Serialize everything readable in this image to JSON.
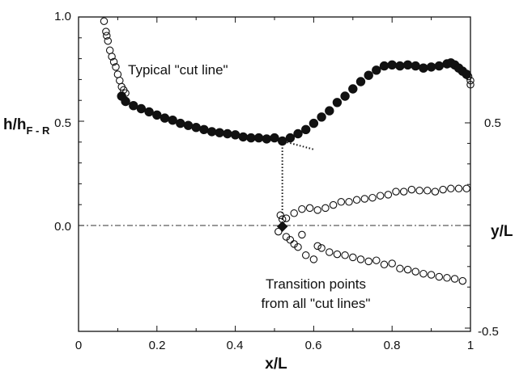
{
  "chart_data": {
    "type": "scatter",
    "title": "",
    "xlabel": "x/L",
    "ylabel_left": {
      "main": "h/h",
      "sub": "F - R"
    },
    "ylabel_right": "y/L",
    "xlim": [
      0,
      1
    ],
    "ylim_left": [
      0,
      1
    ],
    "ylim_right": [
      -0.5,
      0.5
    ],
    "x_ticks": [
      "0",
      "0.2",
      "0.4",
      "0.6",
      "0.8",
      "1"
    ],
    "y_ticks_left": [
      "0.0",
      "0.5",
      "1.0"
    ],
    "y_ticks_right": [
      "-0.5",
      "0.5"
    ],
    "grid": false,
    "annotations": [
      {
        "text": "Typical \"cut line\""
      },
      {
        "text": "Transition points"
      },
      {
        "text": "from all \"cut lines\""
      }
    ],
    "series": [
      {
        "role": "typical cut line (filled)",
        "axis": "left",
        "points": [
          [
            0.11,
            0.62
          ],
          [
            0.12,
            0.595
          ],
          [
            0.14,
            0.575
          ],
          [
            0.16,
            0.56
          ],
          [
            0.18,
            0.545
          ],
          [
            0.2,
            0.53
          ],
          [
            0.22,
            0.515
          ],
          [
            0.24,
            0.505
          ],
          [
            0.26,
            0.49
          ],
          [
            0.28,
            0.48
          ],
          [
            0.3,
            0.47
          ],
          [
            0.32,
            0.46
          ],
          [
            0.34,
            0.45
          ],
          [
            0.36,
            0.445
          ],
          [
            0.38,
            0.44
          ],
          [
            0.4,
            0.435
          ],
          [
            0.42,
            0.425
          ],
          [
            0.44,
            0.42
          ],
          [
            0.46,
            0.42
          ],
          [
            0.48,
            0.415
          ],
          [
            0.5,
            0.42
          ],
          [
            0.52,
            0.405
          ],
          [
            0.54,
            0.42
          ],
          [
            0.56,
            0.44
          ],
          [
            0.58,
            0.46
          ],
          [
            0.6,
            0.49
          ],
          [
            0.62,
            0.52
          ],
          [
            0.64,
            0.55
          ],
          [
            0.66,
            0.59
          ],
          [
            0.68,
            0.62
          ],
          [
            0.7,
            0.655
          ],
          [
            0.72,
            0.69
          ],
          [
            0.74,
            0.72
          ],
          [
            0.76,
            0.745
          ],
          [
            0.78,
            0.765
          ],
          [
            0.8,
            0.77
          ],
          [
            0.82,
            0.765
          ],
          [
            0.84,
            0.77
          ],
          [
            0.86,
            0.765
          ],
          [
            0.88,
            0.755
          ],
          [
            0.9,
            0.76
          ],
          [
            0.92,
            0.765
          ],
          [
            0.94,
            0.775
          ],
          [
            0.95,
            0.78
          ],
          [
            0.96,
            0.77
          ],
          [
            0.97,
            0.755
          ],
          [
            0.98,
            0.74
          ],
          [
            0.99,
            0.725
          ]
        ]
      },
      {
        "role": "typical cut line (open, ends)",
        "axis": "left",
        "points": [
          [
            0.065,
            0.98
          ],
          [
            0.07,
            0.93
          ],
          [
            0.072,
            0.91
          ],
          [
            0.075,
            0.885
          ],
          [
            0.08,
            0.84
          ],
          [
            0.085,
            0.81
          ],
          [
            0.09,
            0.785
          ],
          [
            0.095,
            0.76
          ],
          [
            0.1,
            0.725
          ],
          [
            0.105,
            0.695
          ],
          [
            0.11,
            0.665
          ],
          [
            0.115,
            0.65
          ],
          [
            0.12,
            0.635
          ],
          [
            0.995,
            0.715
          ],
          [
            1.0,
            0.695
          ],
          [
            1.0,
            0.675
          ]
        ]
      },
      {
        "role": "transition points upper branch",
        "axis": "right",
        "points": [
          [
            0.515,
            0.05
          ],
          [
            0.52,
            0.03
          ],
          [
            0.53,
            0.035
          ],
          [
            0.55,
            0.06
          ],
          [
            0.57,
            0.08
          ],
          [
            0.59,
            0.085
          ],
          [
            0.61,
            0.075
          ],
          [
            0.63,
            0.085
          ],
          [
            0.65,
            0.1
          ],
          [
            0.67,
            0.115
          ],
          [
            0.69,
            0.115
          ],
          [
            0.71,
            0.125
          ],
          [
            0.73,
            0.13
          ],
          [
            0.75,
            0.135
          ],
          [
            0.77,
            0.145
          ],
          [
            0.79,
            0.15
          ],
          [
            0.81,
            0.165
          ],
          [
            0.83,
            0.165
          ],
          [
            0.85,
            0.175
          ],
          [
            0.87,
            0.17
          ],
          [
            0.89,
            0.17
          ],
          [
            0.91,
            0.165
          ],
          [
            0.93,
            0.175
          ],
          [
            0.95,
            0.18
          ],
          [
            0.97,
            0.18
          ],
          [
            0.99,
            0.18
          ]
        ]
      },
      {
        "role": "transition points lower branch",
        "axis": "right",
        "points": [
          [
            0.51,
            -0.03
          ],
          [
            0.53,
            -0.055
          ],
          [
            0.54,
            -0.07
          ],
          [
            0.55,
            -0.09
          ],
          [
            0.56,
            -0.105
          ],
          [
            0.57,
            -0.045
          ],
          [
            0.58,
            -0.145
          ],
          [
            0.6,
            -0.165
          ],
          [
            0.61,
            -0.1
          ],
          [
            0.62,
            -0.11
          ],
          [
            0.64,
            -0.13
          ],
          [
            0.66,
            -0.14
          ],
          [
            0.68,
            -0.145
          ],
          [
            0.7,
            -0.155
          ],
          [
            0.72,
            -0.165
          ],
          [
            0.74,
            -0.175
          ],
          [
            0.76,
            -0.17
          ],
          [
            0.78,
            -0.19
          ],
          [
            0.8,
            -0.185
          ],
          [
            0.82,
            -0.21
          ],
          [
            0.84,
            -0.215
          ],
          [
            0.86,
            -0.225
          ],
          [
            0.88,
            -0.235
          ],
          [
            0.9,
            -0.24
          ],
          [
            0.92,
            -0.25
          ],
          [
            0.94,
            -0.255
          ],
          [
            0.96,
            -0.26
          ],
          [
            0.98,
            -0.27
          ]
        ]
      }
    ],
    "transition_marker": {
      "x": 0.52,
      "y_left": 0.405,
      "y_right": -0.005,
      "tangent_end_x": 0.6,
      "tangent_end_y_left": 0.365
    }
  }
}
